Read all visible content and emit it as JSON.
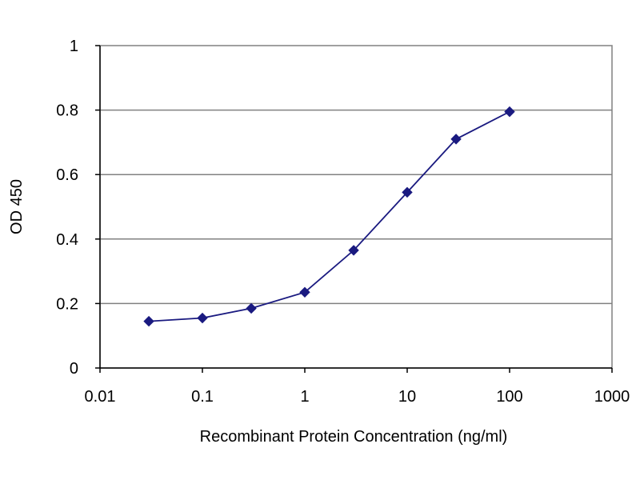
{
  "chart_data": {
    "type": "line",
    "title": "",
    "xlabel": "Recombinant Protein Concentration (ng/ml)",
    "ylabel": "OD 450",
    "xscale": "log",
    "xlim": [
      0.01,
      1000
    ],
    "ylim": [
      0,
      1
    ],
    "x_ticks": [
      0.01,
      0.1,
      1,
      10,
      100,
      1000
    ],
    "x_tick_labels": [
      "0.01",
      "0.1",
      "1",
      "10",
      "100",
      "1000"
    ],
    "y_ticks": [
      0,
      0.2,
      0.4,
      0.6,
      0.8,
      1
    ],
    "y_tick_labels": [
      "0",
      "0.2",
      "0.4",
      "0.6",
      "0.8",
      "1"
    ],
    "grid": "horizontal",
    "legend": "none",
    "series": [
      {
        "x": [
          0.03,
          0.1,
          0.3,
          1,
          3,
          10,
          30,
          100
        ],
        "y": [
          0.145,
          0.155,
          0.185,
          0.235,
          0.365,
          0.545,
          0.71,
          0.795
        ],
        "color": "#1a1a80"
      }
    ],
    "colors": {
      "plot_border": "#808080",
      "gridline": "#808080",
      "axis": "#000000"
    }
  }
}
